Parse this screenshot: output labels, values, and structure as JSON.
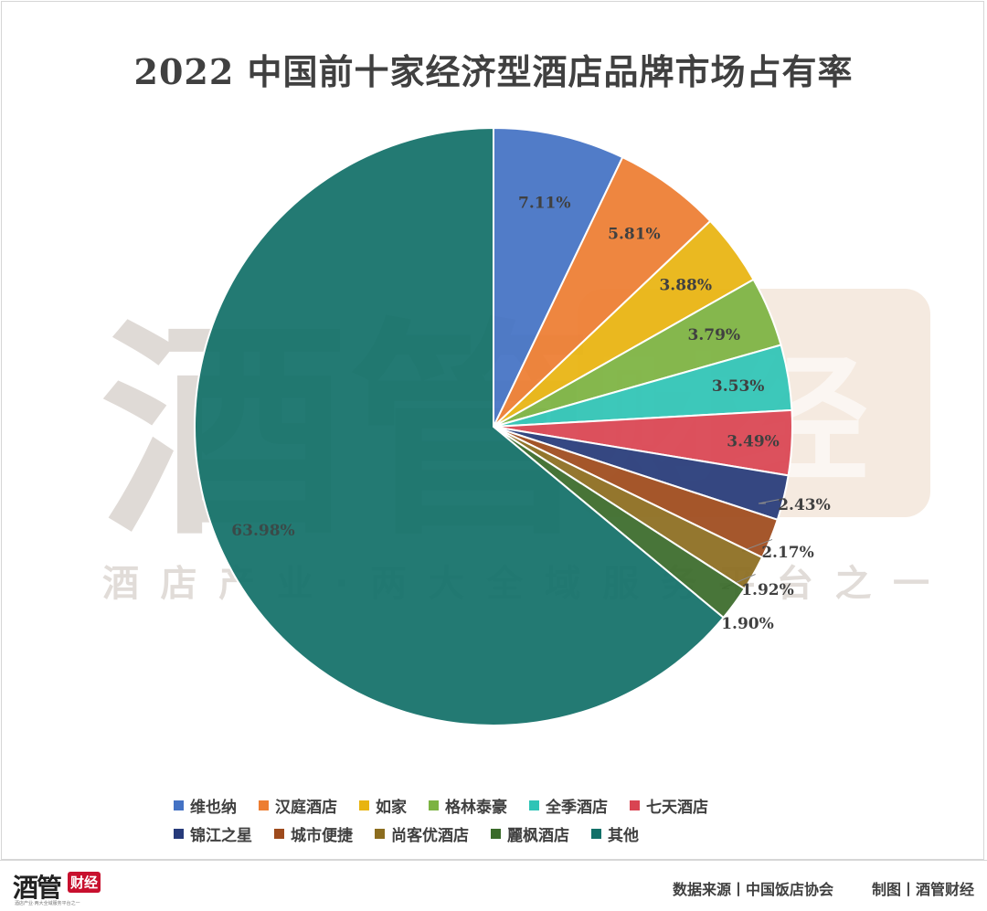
{
  "chart_data": {
    "type": "pie",
    "title": "2022 中国前十家经济型酒店品牌市场占有率",
    "slices": [
      {
        "name": "维也纳",
        "value": 7.11,
        "label": "7.11%",
        "color": "#4472C4"
      },
      {
        "name": "汉庭酒店",
        "value": 5.81,
        "label": "5.81%",
        "color": "#ED7D31"
      },
      {
        "name": "如家",
        "value": 3.88,
        "label": "3.88%",
        "color": "#E8B410"
      },
      {
        "name": "格林泰豪",
        "value": 3.79,
        "label": "3.79%",
        "color": "#7CB342"
      },
      {
        "name": "全季酒店",
        "value": 3.53,
        "label": "3.53%",
        "color": "#2EC4B6"
      },
      {
        "name": "七天酒店",
        "value": 3.49,
        "label": "3.49%",
        "color": "#D94452"
      },
      {
        "name": "锦江之星",
        "value": 2.43,
        "label": "2.43%",
        "color": "#263A7A"
      },
      {
        "name": "城市便捷",
        "value": 2.17,
        "label": "2.17%",
        "color": "#9E4A1C"
      },
      {
        "name": "尚客优酒店",
        "value": 1.92,
        "label": "1.92%",
        "color": "#8C6D1F"
      },
      {
        "name": "麗枫酒店",
        "value": 1.9,
        "label": "1.90%",
        "color": "#3A6B2A"
      },
      {
        "name": "其他",
        "value": 63.98,
        "label": "63.98%",
        "color": "#127068"
      }
    ],
    "start_angle": "12 o'clock, clockwise",
    "legend_position": "bottom"
  },
  "watermark": {
    "big_text": "酒管",
    "badge_text": "财经",
    "slogan": "酒店产业·两大全域服务平台之一"
  },
  "footer": {
    "source": "数据来源丨中国饭店协会",
    "maker": "制图丨酒管财经",
    "logo_main": "酒管",
    "logo_badge": "财经",
    "logo_sub": "酒店产业·两大全域服务平台之一"
  }
}
